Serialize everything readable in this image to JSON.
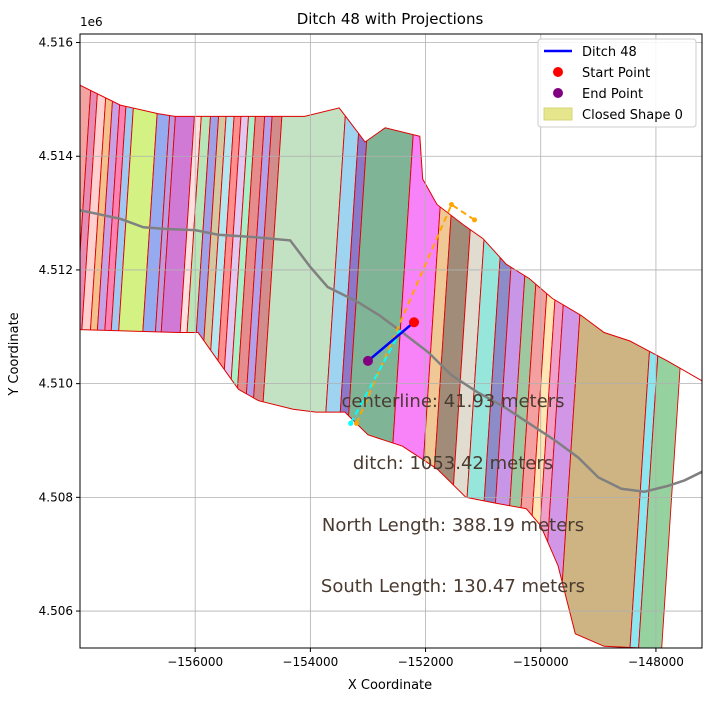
{
  "chart_data": {
    "type": "map-plot",
    "title": "Ditch 48 with Projections",
    "xlabel": "X Coordinate",
    "ylabel": "Y Coordinate",
    "y_offset_label": "1e6",
    "xlim": [
      -158000,
      -147200
    ],
    "ylim": [
      4.50535,
      4.51615
    ],
    "x_ticks": [
      -156000,
      -154000,
      -152000,
      -150000,
      -148000
    ],
    "x_tick_labels": [
      "−156000",
      "−154000",
      "−152000",
      "−150000",
      "−148000"
    ],
    "y_ticks": [
      4.506,
      4.508,
      4.51,
      4.512,
      4.514,
      4.516
    ],
    "y_tick_labels": [
      "4.506",
      "4.508",
      "4.510",
      "4.512",
      "4.514",
      "4.516"
    ],
    "grid": true,
    "legend_position": "top-right",
    "legend": [
      {
        "label": "Ditch 48",
        "kind": "line",
        "color": "#0000ff"
      },
      {
        "label": "Start Point",
        "kind": "marker",
        "color": "#ff0000"
      },
      {
        "label": "End Point",
        "kind": "marker",
        "color": "#800080"
      },
      {
        "label": "Closed Shape 0",
        "kind": "patch",
        "color": "#e6e68c"
      }
    ],
    "boundary": [
      [
        -158000,
        4.51525
      ],
      [
        -157300,
        4.5149
      ],
      [
        -156650,
        4.51475
      ],
      [
        -156350,
        4.5147
      ],
      [
        -154100,
        4.5147
      ],
      [
        -153500,
        4.51485
      ],
      [
        -153050,
        4.51425
      ],
      [
        -152700,
        4.5145
      ],
      [
        -152100,
        4.51435
      ],
      [
        -152050,
        4.5136
      ],
      [
        -151800,
        4.51315
      ],
      [
        -151350,
        4.5128
      ],
      [
        -151000,
        4.51255
      ],
      [
        -150600,
        4.5121
      ],
      [
        -150200,
        4.51185
      ],
      [
        -149800,
        4.5115
      ],
      [
        -149300,
        4.5112
      ],
      [
        -148900,
        4.5109
      ],
      [
        -148450,
        4.51075
      ],
      [
        -147800,
        4.5104
      ],
      [
        -147200,
        4.51005
      ],
      [
        -147200,
        4.50535
      ],
      [
        -148250,
        4.50535
      ],
      [
        -148900,
        4.50538
      ],
      [
        -149400,
        4.5056
      ],
      [
        -149700,
        4.5068
      ],
      [
        -150000,
        4.5075
      ],
      [
        -150250,
        4.5078
      ],
      [
        -150800,
        4.5079
      ],
      [
        -151300,
        4.508
      ],
      [
        -151800,
        4.5085
      ],
      [
        -152400,
        4.5089
      ],
      [
        -153000,
        4.5091
      ],
      [
        -153400,
        4.5095
      ],
      [
        -153900,
        4.5095
      ],
      [
        -154300,
        4.50955
      ],
      [
        -154900,
        4.5097
      ],
      [
        -155250,
        4.5099
      ],
      [
        -155600,
        4.5104
      ],
      [
        -155950,
        4.5109
      ],
      [
        -156300,
        4.5109
      ],
      [
        -158000,
        4.51095
      ]
    ],
    "strip_colors": [
      "#f4a3a3",
      "#c86496",
      "#d0f080",
      "#ffb0b0",
      "#e39a9a",
      "#f78fd6",
      "#c9c9f0",
      "#b8e0f8",
      "#ff8e8e",
      "#a07050",
      "#d4d4d4",
      "#b19cd9",
      "#f2c48c",
      "#8fd4a3",
      "#ff9a9a"
    ],
    "strips": [
      {
        "x": -158000,
        "w": 250,
        "c": "#f4a3a3"
      },
      {
        "x": -157750,
        "w": 120,
        "c": "#e68cb4"
      },
      {
        "x": -157630,
        "w": 150,
        "c": "#ffd0d0"
      },
      {
        "x": -157480,
        "w": 120,
        "c": "#f4c08c"
      },
      {
        "x": -157360,
        "w": 130,
        "c": "#c8a0e6"
      },
      {
        "x": -157230,
        "w": 110,
        "c": "#ff82b4"
      },
      {
        "x": -157120,
        "w": 130,
        "c": "#a0c8f0"
      },
      {
        "x": -156990,
        "w": 420,
        "c": "#d4f284"
      },
      {
        "x": -156570,
        "w": 220,
        "c": "#96aaf0"
      },
      {
        "x": -156350,
        "w": 100,
        "c": "#c09ae0"
      },
      {
        "x": -156250,
        "w": 330,
        "c": "#d07ad6"
      },
      {
        "x": -155920,
        "w": 120,
        "c": "#ffe0e0"
      },
      {
        "x": -155800,
        "w": 160,
        "c": "#b8e6b8"
      },
      {
        "x": -155640,
        "w": 140,
        "c": "#a0a0e6"
      },
      {
        "x": -155500,
        "w": 130,
        "c": "#d4c8a0"
      },
      {
        "x": -155370,
        "w": 140,
        "c": "#b4e6f0"
      },
      {
        "x": -155230,
        "w": 120,
        "c": "#ff9090"
      },
      {
        "x": -155110,
        "w": 130,
        "c": "#e0c8f0"
      },
      {
        "x": -154980,
        "w": 120,
        "c": "#a8f0c8"
      },
      {
        "x": -154860,
        "w": 160,
        "c": "#e68c8c"
      },
      {
        "x": -154700,
        "w": 130,
        "c": "#b4a0e6"
      },
      {
        "x": -154570,
        "w": 170,
        "c": "#d28c8c"
      },
      {
        "x": -154400,
        "w": 1100,
        "c": "#c3e1c3"
      },
      {
        "x": -153300,
        "w": 250,
        "c": "#9ed4f0"
      },
      {
        "x": -153050,
        "w": 150,
        "c": "#8c78c8"
      },
      {
        "x": -152900,
        "w": 800,
        "c": "#80b496"
      },
      {
        "x": -152100,
        "w": 550,
        "c": "#f882f8"
      },
      {
        "x": -151550,
        "w": 200,
        "c": "#f0c896"
      },
      {
        "x": -151350,
        "w": 350,
        "c": "#a08c78"
      },
      {
        "x": -151000,
        "w": 250,
        "c": "#e0dcd0"
      },
      {
        "x": -150750,
        "w": 300,
        "c": "#96e6dc"
      },
      {
        "x": -150450,
        "w": 200,
        "c": "#8c8cc8"
      },
      {
        "x": -150250,
        "w": 250,
        "c": "#c896e6"
      },
      {
        "x": -150000,
        "w": 200,
        "c": "#a0c8a0"
      },
      {
        "x": -149800,
        "w": 200,
        "c": "#f4a0a0"
      },
      {
        "x": -149600,
        "w": 150,
        "c": "#ffe6b4"
      },
      {
        "x": -149450,
        "w": 150,
        "c": "#f0a0c8"
      },
      {
        "x": -149300,
        "w": 300,
        "c": "#d296e6"
      },
      {
        "x": -149000,
        "w": 1250,
        "c": "#cdb482"
      },
      {
        "x": -147750,
        "w": 150,
        "c": "#8ce6f0"
      },
      {
        "x": -147600,
        "w": 400,
        "c": "#96d2a0"
      }
    ],
    "centerline_gray": [
      [
        -158000,
        4.51305
      ],
      [
        -157300,
        4.5129
      ],
      [
        -156900,
        4.51275
      ],
      [
        -156500,
        4.51272
      ],
      [
        -156000,
        4.5127
      ],
      [
        -155600,
        4.51262
      ],
      [
        -155000,
        4.51258
      ],
      [
        -154350,
        4.51252
      ],
      [
        -154000,
        4.51205
      ],
      [
        -153700,
        4.5117
      ],
      [
        -153200,
        4.51145
      ],
      [
        -152800,
        4.5112
      ],
      [
        -152400,
        4.5109
      ],
      [
        -151950,
        4.51055
      ],
      [
        -151550,
        4.51015
      ],
      [
        -151100,
        4.50985
      ],
      [
        -150650,
        4.5096
      ],
      [
        -150200,
        4.5093
      ],
      [
        -149750,
        4.509
      ],
      [
        -149350,
        4.5087
      ],
      [
        -149000,
        4.50835
      ],
      [
        -148600,
        4.50815
      ],
      [
        -148200,
        4.5081
      ],
      [
        -147800,
        4.5082
      ],
      [
        -147500,
        4.5083
      ],
      [
        -147200,
        4.50845
      ]
    ],
    "ditch": {
      "x": [
        -152200,
        -153000
      ],
      "y": [
        4.51108,
        4.5104
      ]
    },
    "start_point": {
      "x": -152200,
      "y": 4.51108
    },
    "end_point": {
      "x": -153000,
      "y": 4.5104
    },
    "north_projection": {
      "x": [
        -153200,
        -151550,
        -151150
      ],
      "y": [
        4.5093,
        4.51315,
        4.51288
      ]
    },
    "south_projection": {
      "x": [
        -153300,
        -152450
      ],
      "y": [
        4.5093,
        4.5109
      ]
    },
    "annotations": [
      {
        "text": "centerline: 41.93 meters"
      },
      {
        "text": "ditch: 1053.42 meters"
      },
      {
        "text": "North Length: 388.19 meters"
      },
      {
        "text": "South Length: 130.47 meters"
      }
    ]
  }
}
